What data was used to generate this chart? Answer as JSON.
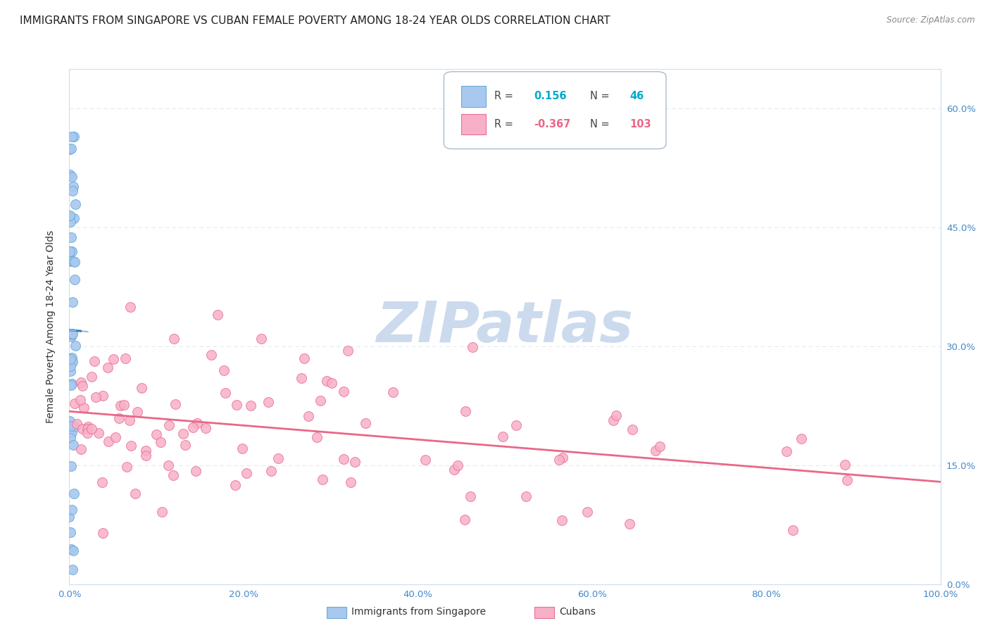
{
  "title": "IMMIGRANTS FROM SINGAPORE VS CUBAN FEMALE POVERTY AMONG 18-24 YEAR OLDS CORRELATION CHART",
  "source": "Source: ZipAtlas.com",
  "ylabel": "Female Poverty Among 18-24 Year Olds",
  "xlim": [
    0,
    1.0
  ],
  "ylim": [
    0,
    0.65
  ],
  "xticks": [
    0.0,
    0.2,
    0.4,
    0.6,
    0.8,
    1.0
  ],
  "yticks": [
    0.0,
    0.15,
    0.3,
    0.45,
    0.6
  ],
  "xticklabels": [
    "0.0%",
    "20.0%",
    "40.0%",
    "60.0%",
    "80.0%",
    "100.0%"
  ],
  "yticklabels_right": [
    "0.0%",
    "15.0%",
    "30.0%",
    "45.0%",
    "60.0%"
  ],
  "singapore_color": "#a8c8f0",
  "singapore_edge": "#6aaad4",
  "cuban_color": "#f8b0c8",
  "cuban_edge": "#e87090",
  "regression_blue": "#3377bb",
  "regression_pink": "#e8688a",
  "regression_blue_dashed": "#88bbdd",
  "watermark_color": "#ccdaee",
  "background_color": "#ffffff",
  "grid_color": "#dde8f0",
  "title_fontsize": 11,
  "axis_fontsize": 10,
  "tick_fontsize": 9.5,
  "tick_color": "#4488cc",
  "legend_r1_val": "0.156",
  "legend_n1_val": "46",
  "legend_r2_val": "-0.367",
  "legend_n2_val": "103",
  "legend_num_color": "#00aacc",
  "legend_pink_color": "#e8688a",
  "legend_text_color": "#444444"
}
